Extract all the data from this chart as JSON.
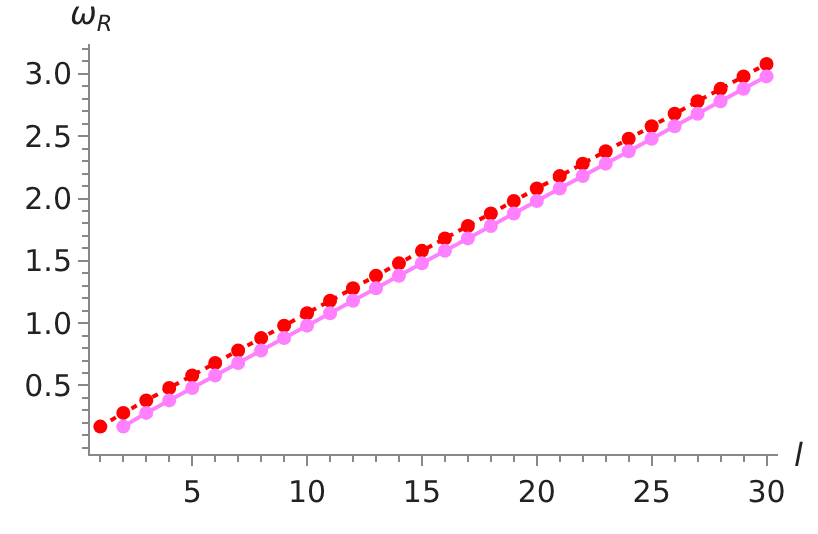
{
  "chart_data": {
    "type": "line",
    "xlabel": "l",
    "ylabel": "ω$_{R}$",
    "xlim": [
      0.55,
      30.5
    ],
    "ylim": [
      -0.05,
      3.24
    ],
    "xticks": [
      5,
      10,
      15,
      20,
      25,
      30
    ],
    "yticks": [
      0.5,
      {
        "value": 1,
        "label": "1.0"
      },
      1.5,
      {
        "value": 2,
        "label": "2.0"
      },
      2.5,
      {
        "value": 3,
        "label": "3.0"
      }
    ],
    "marker": "circle",
    "series": [
      {
        "color": "#ff0000",
        "line_style": "dotted",
        "x": [
          1,
          2,
          3,
          4,
          5,
          6,
          7,
          8,
          9,
          10,
          11,
          12,
          13,
          14,
          15,
          16,
          17,
          18,
          19,
          20,
          21,
          22,
          23,
          24,
          25,
          26,
          27,
          28,
          29,
          30
        ],
        "values": [
          0.17,
          0.28,
          0.38,
          0.48,
          0.58,
          0.68,
          0.78,
          0.88,
          0.98,
          1.08,
          1.18,
          1.28,
          1.38,
          1.48,
          1.58,
          1.68,
          1.78,
          1.88,
          1.98,
          2.08,
          2.18,
          2.28,
          2.38,
          2.48,
          2.58,
          2.68,
          2.78,
          2.88,
          2.98,
          3.08
        ]
      },
      {
        "color": "#ff80ff",
        "line_style": "solid",
        "x": [
          2,
          3,
          4,
          5,
          6,
          7,
          8,
          9,
          10,
          11,
          12,
          13,
          14,
          15,
          16,
          17,
          18,
          19,
          20,
          21,
          22,
          23,
          24,
          25,
          26,
          27,
          28,
          29,
          30
        ],
        "values": [
          0.17,
          0.28,
          0.38,
          0.48,
          0.58,
          0.68,
          0.78,
          0.88,
          0.98,
          1.08,
          1.18,
          1.28,
          1.38,
          1.48,
          1.58,
          1.68,
          1.78,
          1.88,
          1.98,
          2.08,
          2.18,
          2.28,
          2.38,
          2.48,
          2.58,
          2.68,
          2.78,
          2.88,
          2.98
        ]
      }
    ]
  }
}
